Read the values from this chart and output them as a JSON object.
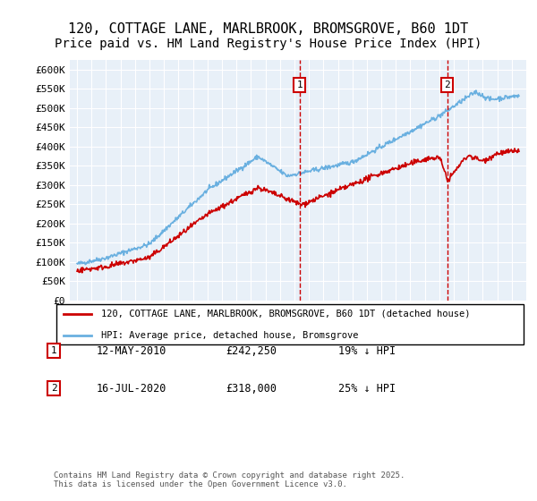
{
  "title": "120, COTTAGE LANE, MARLBROOK, BROMSGROVE, B60 1DT",
  "subtitle": "Price paid vs. HM Land Registry's House Price Index (HPI)",
  "ylabel": "",
  "ylim": [
    0,
    625000
  ],
  "yticks": [
    0,
    50000,
    100000,
    150000,
    200000,
    250000,
    300000,
    350000,
    400000,
    450000,
    500000,
    550000,
    600000
  ],
  "ytick_labels": [
    "£0",
    "£50K",
    "£100K",
    "£150K",
    "£200K",
    "£250K",
    "£300K",
    "£350K",
    "£400K",
    "£450K",
    "£500K",
    "£550K",
    "£600K"
  ],
  "background_color": "#e8f0f8",
  "plot_bg": "#e8f0f8",
  "hpi_color": "#6ab0e0",
  "price_color": "#cc0000",
  "vline_color": "#cc0000",
  "marker1_x": 2010.36,
  "marker2_x": 2020.54,
  "marker1_label": "1",
  "marker2_label": "2",
  "legend_line1": "120, COTTAGE LANE, MARLBROOK, BROMSGROVE, B60 1DT (detached house)",
  "legend_line2": "HPI: Average price, detached house, Bromsgrove",
  "table_rows": [
    {
      "num": "1",
      "date": "12-MAY-2010",
      "price": "£242,250",
      "info": "19% ↓ HPI"
    },
    {
      "num": "2",
      "date": "16-JUL-2020",
      "price": "£318,000",
      "info": "25% ↓ HPI"
    }
  ],
  "copyright": "Contains HM Land Registry data © Crown copyright and database right 2025.\nThis data is licensed under the Open Government Licence v3.0.",
  "title_fontsize": 11,
  "subtitle_fontsize": 10
}
